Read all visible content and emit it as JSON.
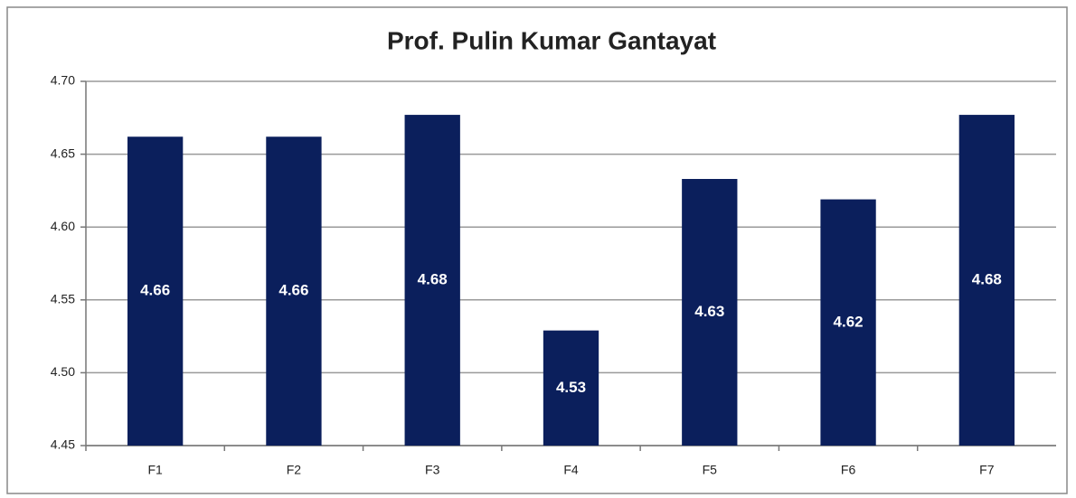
{
  "chart_data": {
    "type": "bar",
    "title": "Prof. Pulin Kumar Gantayat",
    "categories": [
      "F1",
      "F2",
      "F3",
      "F4",
      "F5",
      "F6",
      "F7"
    ],
    "values": [
      4.662,
      4.662,
      4.677,
      4.529,
      4.633,
      4.619,
      4.677
    ],
    "value_labels": [
      "4.66",
      "4.66",
      "4.68",
      "4.53",
      "4.63",
      "4.62",
      "4.68"
    ],
    "color": "#0b1f5c",
    "ylim": [
      4.45,
      4.7
    ],
    "yticks": [
      4.45,
      {
        "value": 4.5,
        "label": "4.50"
      },
      4.55,
      {
        "value": 4.6,
        "label": "4.60"
      },
      4.65,
      {
        "value": 4.7,
        "label": "4.70"
      }
    ],
    "grid": true
  }
}
